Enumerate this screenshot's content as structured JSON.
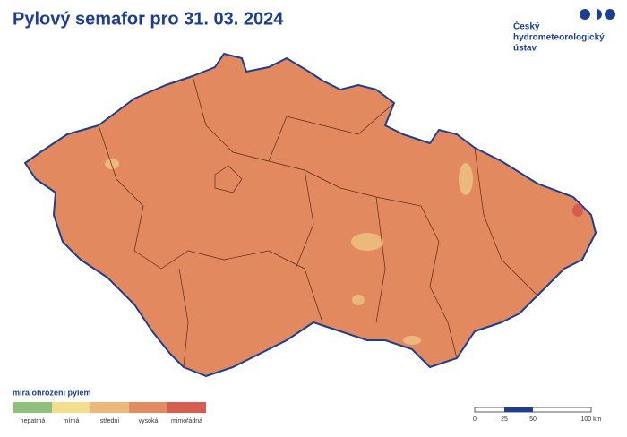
{
  "header": {
    "title": "Pylový semafor pro 31. 03. 2024"
  },
  "logo": {
    "lines": [
      "Český",
      "hydrometeorologický",
      "ústav"
    ]
  },
  "legend": {
    "title": "míra ohrožení pylem",
    "items": [
      {
        "label": "nepatrná",
        "color": "#8fbf7f"
      },
      {
        "label": "mírná",
        "color": "#f3de8d"
      },
      {
        "label": "střední",
        "color": "#ebb97b"
      },
      {
        "label": "vysoká",
        "color": "#e38b62"
      },
      {
        "label": "mimořádná",
        "color": "#d85c4f"
      }
    ]
  },
  "scale_bar": {
    "labels": [
      "0",
      "25",
      "50",
      "100 km"
    ]
  }
}
